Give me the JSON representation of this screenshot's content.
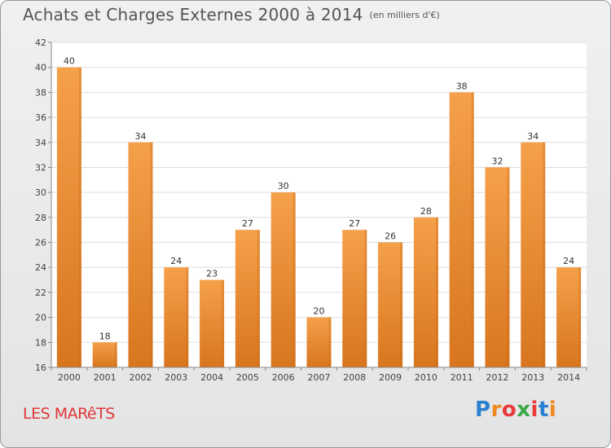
{
  "title": "Achats et Charges Externes 2000 à 2014",
  "subtitle": "(en milliers d'€)",
  "commune": "LES MARêTS",
  "logo": {
    "text": "Proxiti",
    "letters": [
      "P",
      "r",
      "o",
      "x",
      "i",
      "t",
      "i"
    ],
    "colors": [
      "#2a7fd0",
      "#f08a1e",
      "#e83a3a",
      "#3aa845",
      "#e83a3a",
      "#2a7fd0",
      "#f08a1e"
    ]
  },
  "colors": {
    "bar": "#f0902e",
    "bar_dark": "#d4701a",
    "title": "#555555",
    "commune": "#e0363a"
  },
  "chart_data": {
    "type": "bar",
    "categories": [
      "2000",
      "2001",
      "2002",
      "2003",
      "2004",
      "2005",
      "2006",
      "2007",
      "2008",
      "2009",
      "2010",
      "2011",
      "2012",
      "2013",
      "2014"
    ],
    "values": [
      40,
      18,
      34,
      24,
      23,
      27,
      30,
      20,
      27,
      26,
      28,
      38,
      32,
      34,
      24
    ],
    "title": "Achats et Charges Externes 2000 à 2014",
    "subtitle": "(en milliers d'€)",
    "ylim": [
      16,
      42
    ],
    "yticks": [
      16,
      18,
      20,
      22,
      24,
      26,
      28,
      30,
      32,
      34,
      36,
      38,
      40,
      42
    ],
    "grid": true,
    "legend": "none"
  }
}
